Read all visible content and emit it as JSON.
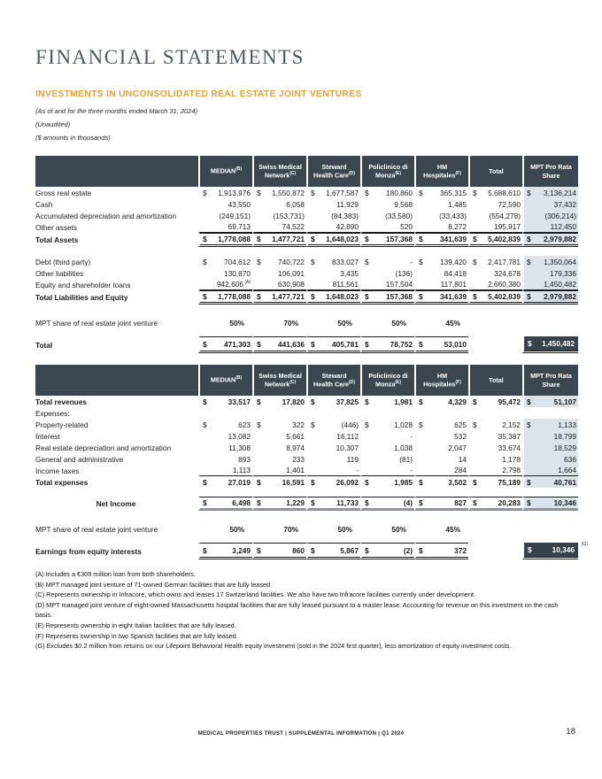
{
  "page": {
    "title": "FINANCIAL STATEMENTS",
    "section_title": "INVESTMENTS IN UNCONSOLIDATED REAL ESTATE JOINT VENTURES",
    "subtitle_period": "(As of and for the three months ended March 31, 2024)",
    "subtitle_unaudited": "(Unaudited)",
    "subtitle_amounts": "($ amounts in thousands)",
    "footer_text": "MEDICAL PROPERTIES TRUST | SUPPLEMENTAL INFORMATION | Q1 2024",
    "page_number": "18"
  },
  "colors": {
    "header_bg": "#3B4650",
    "shaded_column_bg": "#DCE3E9",
    "dark_box_bg": "#37424C",
    "accent_orange": "#E5A23C",
    "title_gray": "#4C5A66"
  },
  "columns": [
    {
      "line1": "MEDIAN",
      "line2": "",
      "sup": "(B)"
    },
    {
      "line1": "Swiss Medical",
      "line2": "Network",
      "sup": "(C)"
    },
    {
      "line1": "Steward",
      "line2": "Health Care",
      "sup": "(D)"
    },
    {
      "line1": "Policlinico di",
      "line2": "Monza",
      "sup": "(E)"
    },
    {
      "line1": "HM",
      "line2": "Hospitales",
      "sup": "(F)"
    },
    {
      "line1": "Total",
      "line2": "",
      "sup": ""
    },
    {
      "line1": "MPT Pro Rata",
      "line2": "Share",
      "sup": ""
    }
  ],
  "tables": [
    {
      "name": "balance_sheet",
      "rows": [
        {
          "label": "Gross real estate",
          "dollar": true,
          "shaded": true,
          "values": [
            "1,913,976",
            "1,550,872",
            "1,677,587",
            "180,860",
            "365,315",
            "5,688,610",
            "3,136,214"
          ]
        },
        {
          "label": "Cash",
          "shaded": true,
          "values": [
            "43,550",
            "6,058",
            "11,929",
            "9,568",
            "1,485",
            "72,590",
            "37,432"
          ]
        },
        {
          "label": "Accumulated depreciation and amortization",
          "shaded": true,
          "values": [
            "(249,151)",
            "(153,731)",
            "(84,383)",
            "(33,580)",
            "(33,433)",
            "(554,278)",
            "(306,214)"
          ]
        },
        {
          "label": "Other assets",
          "shaded": true,
          "u": true,
          "values": [
            "69,713",
            "74,522",
            "42,890",
            "520",
            "8,272",
            "195,917",
            "112,450"
          ]
        },
        {
          "label": "Total Assets",
          "dollar": true,
          "t": true,
          "shaded": true,
          "values": [
            "1,778,088",
            "1,477,721",
            "1,648,023",
            "157,368",
            "341,639",
            "5,402,839",
            "2,979,882"
          ]
        },
        {
          "sp": 10
        },
        {
          "label": "Debt (third party)",
          "dollar": true,
          "shaded": true,
          "values": [
            "704,612",
            "740,722",
            "833,027",
            "-",
            "139,420",
            "2,417,781",
            "1,350,064"
          ]
        },
        {
          "label": "Other liabilities",
          "shaded": true,
          "values": [
            "130,870",
            "106,091",
            "3,435",
            "(136)",
            "84,418",
            "324,678",
            "179,336"
          ]
        },
        {
          "label": "Equity and shareholder loans",
          "shaded": true,
          "u": true,
          "sup0": "(A)",
          "values": [
            "942,606",
            "630,908",
            "811,561",
            "157,504",
            "117,801",
            "2,660,380",
            "1,450,482"
          ]
        },
        {
          "label": "Total Liabilities and Equity",
          "dollar": true,
          "t": true,
          "shaded": true,
          "values": [
            "1,778,088",
            "1,477,721",
            "1,648,023",
            "157,368",
            "341,639",
            "5,402,839",
            "2,979,882"
          ]
        },
        {
          "sp": 14
        },
        {
          "label": "MPT share of real estate joint venture",
          "pct": true,
          "values": [
            "50%",
            "70%",
            "50%",
            "50%",
            "45%",
            "",
            ""
          ]
        },
        {
          "sp": 9
        },
        {
          "label": "Total",
          "grand": true,
          "dollar": true,
          "box": "1,450,482",
          "values": [
            "471,303",
            "441,636",
            "405,781",
            "78,752",
            "53,010",
            "",
            ""
          ]
        }
      ]
    },
    {
      "name": "income_statement",
      "rows": [
        {
          "label": "Total revenues",
          "dollar": true,
          "b": true,
          "shaded": true,
          "values": [
            "33,517",
            "17,820",
            "37,825",
            "1,981",
            "4,329",
            "95,472",
            "51,107"
          ]
        },
        {
          "label": "Expenses:",
          "values": [
            "",
            "",
            "",
            "",
            "",
            "",
            ""
          ]
        },
        {
          "label": "Property-related",
          "dollar": true,
          "shaded": true,
          "values": [
            "623",
            "322",
            "(446)",
            "1,028",
            "625",
            "2,152",
            "1,133"
          ]
        },
        {
          "label": "Interest",
          "shaded": true,
          "values": [
            "13,082",
            "5,661",
            "16,112",
            "-",
            "532",
            "35,387",
            "18,799"
          ]
        },
        {
          "label": "Real estate depreciation and amortization",
          "shaded": true,
          "values": [
            "11,308",
            "8,974",
            "10,307",
            "1,038",
            "2,047",
            "33,674",
            "18,529"
          ]
        },
        {
          "label": "General and administrative",
          "shaded": true,
          "values": [
            "893",
            "233",
            "119",
            "(81)",
            "14",
            "1,178",
            "636"
          ]
        },
        {
          "label": "Income taxes",
          "shaded": true,
          "u": true,
          "values": [
            "1,113",
            "1,401",
            "-",
            "-",
            "284",
            "2,798",
            "1,664"
          ]
        },
        {
          "label": "Total expenses",
          "dollar": true,
          "b": true,
          "shaded": true,
          "values": [
            "27,019",
            "16,591",
            "26,092",
            "1,985",
            "3,502",
            "75,189",
            "40,761"
          ]
        },
        {
          "sp": 10
        },
        {
          "label": "Net Income",
          "dollar": true,
          "n": true,
          "center": true,
          "shaded": true,
          "values": [
            "6,498",
            "1,229",
            "11,733",
            "(4)",
            "827",
            "20,283",
            "10,346"
          ]
        },
        {
          "sp": 14
        },
        {
          "label": "MPT share of real estate joint venture",
          "pct": true,
          "values": [
            "50%",
            "70%",
            "50%",
            "50%",
            "45%",
            "",
            ""
          ]
        },
        {
          "sp": 9
        },
        {
          "label": "Earnings from equity interests",
          "grand": true,
          "dollar": true,
          "box": "10,346",
          "box_sup": "(G)",
          "values": [
            "3,249",
            "860",
            "5,867",
            "(2)",
            "372",
            "",
            ""
          ]
        }
      ]
    }
  ],
  "footnotes": [
    "(A) Includes a €309 million loan from both shareholders.",
    "(B) MPT managed joint venture of 71-owned German facilities that are fully leased.",
    "(C) Represents ownership in Infracore, which owns and leases 17 Switzerland facilities. We also have two Infracore facilities currently under development.",
    "(D) MPT managed joint venture of eight-owned Massachusetts hospital facilities that are fully leased pursuant to a master lease. Accounting for revenue on this investment on the cash basis.",
    "(E) Represents ownership in eight Italian facilities that are fully leased.",
    "(F) Represents ownership in two Spanish facilities that are fully leased.",
    "(G) Excludes $0.2 million from returns on our Lifepoint Behavioral Health equity investment (sold in the 2024 first quarter), less amortization of equity investment costs."
  ]
}
